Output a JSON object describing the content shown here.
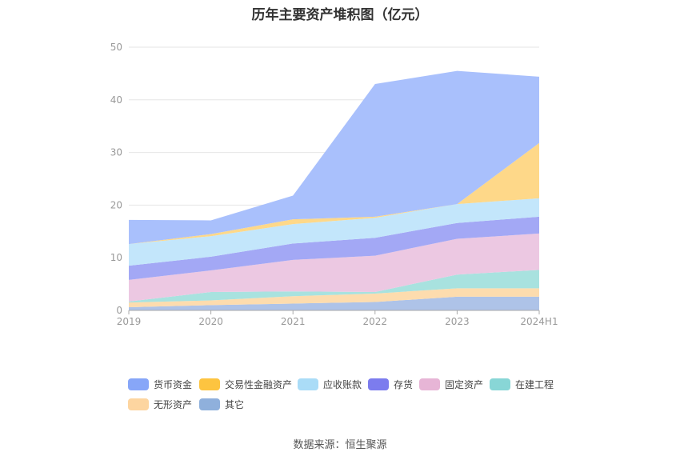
{
  "title": "历年主要资产堆积图（亿元）",
  "source": "数据来源：恒生聚源",
  "chart_data": {
    "type": "area",
    "stacked": true,
    "categories": [
      "2019",
      "2020",
      "2021",
      "2022",
      "2023",
      "2024H1"
    ],
    "ylim": [
      0,
      50
    ],
    "yticks": [
      0,
      10,
      20,
      30,
      40,
      50
    ],
    "grid": true,
    "legend_position": "bottom",
    "series": [
      {
        "name": "其它",
        "color": "#aec3e8",
        "values": [
          0.6,
          1.0,
          1.3,
          1.6,
          2.6,
          2.6
        ]
      },
      {
        "name": "无形资产",
        "color": "#fddcae",
        "values": [
          0.9,
          0.9,
          1.4,
          1.6,
          1.6,
          1.6
        ]
      },
      {
        "name": "在建工程",
        "color": "#a8e2df",
        "values": [
          0.2,
          1.6,
          0.9,
          0.3,
          2.6,
          3.5
        ]
      },
      {
        "name": "固定资产",
        "color": "#ecc8e2",
        "values": [
          4.1,
          4.1,
          6.0,
          6.9,
          6.8,
          6.9
        ]
      },
      {
        "name": "存货",
        "color": "#a3a8f5",
        "values": [
          2.7,
          2.6,
          3.1,
          3.4,
          3.0,
          3.2
        ]
      },
      {
        "name": "应收账款",
        "color": "#c3e6fb",
        "values": [
          4.1,
          3.9,
          3.7,
          3.8,
          3.6,
          3.5
        ]
      },
      {
        "name": "交易性金融资产",
        "color": "#fed889",
        "values": [
          0.0,
          0.4,
          0.9,
          0.2,
          0.0,
          10.5
        ]
      },
      {
        "name": "货币资金",
        "color": "#a9c0fc",
        "values": [
          4.6,
          2.6,
          4.5,
          25.2,
          25.3,
          12.6
        ]
      }
    ]
  },
  "legend": [
    {
      "name": "货币资金",
      "color": "#87a6f8"
    },
    {
      "name": "交易性金融资产",
      "color": "#fdc440"
    },
    {
      "name": "应收账款",
      "color": "#aadcf7"
    },
    {
      "name": "存货",
      "color": "#7c7cee"
    },
    {
      "name": "固定资产",
      "color": "#e7b5d6"
    },
    {
      "name": "在建工程",
      "color": "#88d6d6"
    },
    {
      "name": "无形资产",
      "color": "#fdd5a0"
    },
    {
      "name": "其它",
      "color": "#8fb0dc"
    }
  ]
}
